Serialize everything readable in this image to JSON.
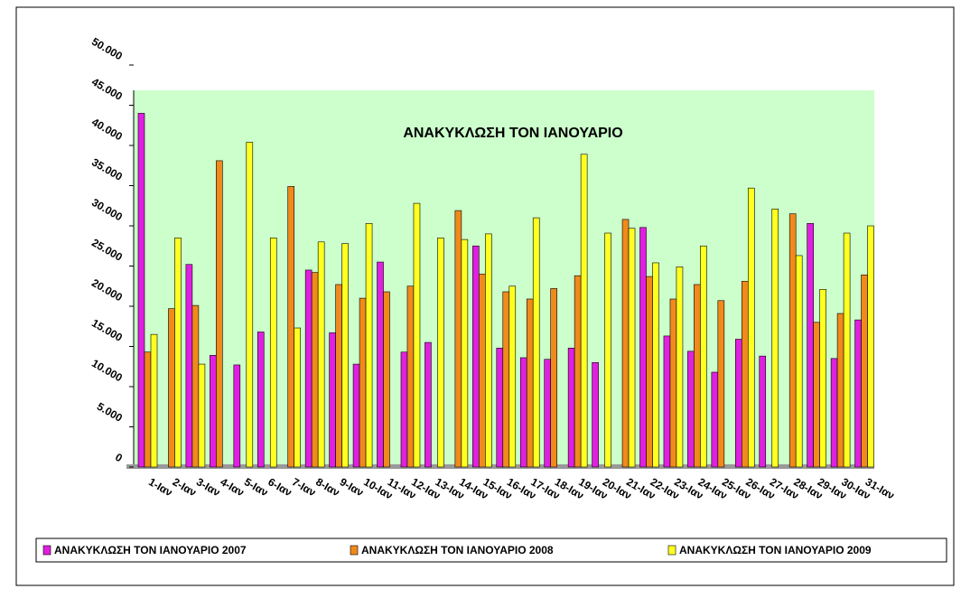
{
  "chart_data": {
    "type": "bar",
    "title": "ΑΝΑΚΥΚΛΩΣΗ ΤΟΝ ΙΑΝΟΥΑΡΙΟ",
    "categories": [
      "1-Ιαν",
      "2-Ιαν",
      "3-Ιαν",
      "4-Ιαν",
      "5-Ιαν",
      "6-Ιαν",
      "7-Ιαν",
      "8-Ιαν",
      "9-Ιαν",
      "10-Ιαν",
      "11-Ιαν",
      "12-Ιαν",
      "13-Ιαν",
      "14-Ιαν",
      "15-Ιαν",
      "16-Ιαν",
      "17-Ιαν",
      "18-Ιαν",
      "19-Ιαν",
      "20-Ιαν",
      "21-Ιαν",
      "22-Ιαν",
      "23-Ιαν",
      "24-Ιαν",
      "25-Ιαν",
      "26-Ιαν",
      "27-Ιαν",
      "28-Ιαν",
      "29-Ιαν",
      "30-Ιαν",
      "31-Ιαν"
    ],
    "series": [
      {
        "name": "ΑΝΑΚΥΚΛΩΣΗ ΤΟΝ ΙΑΝΟΥΑΡΙΟ 2007",
        "color": "#e020e0",
        "values": [
          44000,
          0,
          25200,
          13900,
          12700,
          16800,
          0,
          24500,
          16700,
          12800,
          25500,
          14300,
          15500,
          0,
          27500,
          14800,
          13600,
          13400,
          14800,
          13000,
          0,
          29800,
          16300,
          14400,
          11800,
          15900,
          13800,
          0,
          30300,
          13500,
          18300
        ]
      },
      {
        "name": "ΑΝΑΚΥΚΛΩΣΗ ΤΟΝ ΙΑΝΟΥΑΡΙΟ 2008",
        "color": "#f08a1c",
        "values": [
          14300,
          19700,
          20100,
          38100,
          0,
          0,
          34900,
          24200,
          22700,
          21000,
          21800,
          22500,
          0,
          31900,
          24000,
          21800,
          20900,
          22200,
          23800,
          0,
          30800,
          23700,
          20900,
          22700,
          20700,
          23100,
          0,
          31500,
          18000,
          19100,
          23900
        ]
      },
      {
        "name": "ΑΝΑΚΥΚΛΩΣΗ ΤΟΝ ΙΑΝΟΥΑΡΙΟ 2009",
        "color": "#ffff20",
        "values": [
          16500,
          28500,
          12800,
          0,
          40400,
          28500,
          17300,
          28000,
          27800,
          30300,
          0,
          32800,
          28500,
          28300,
          29000,
          22500,
          31000,
          0,
          38900,
          29100,
          29700,
          25400,
          24900,
          27500,
          0,
          34700,
          32100,
          26300,
          22100,
          29100,
          30000
        ]
      }
    ],
    "ylim": [
      0,
      50000
    ],
    "yticks": [
      0,
      {
        "value": 5000,
        "label": "5.000"
      },
      {
        "value": 10000,
        "label": "10.000"
      },
      {
        "value": 15000,
        "label": "15.000"
      },
      {
        "value": 20000,
        "label": "20.000"
      },
      {
        "value": 25000,
        "label": "25.000"
      },
      {
        "value": 30000,
        "label": "30.000"
      },
      {
        "value": 35000,
        "label": "35.000"
      },
      {
        "value": 40000,
        "label": "40.000"
      },
      {
        "value": 45000,
        "label": "45.000"
      },
      {
        "value": 50000,
        "label": "50.000"
      }
    ],
    "grid": false,
    "legend": "bottom"
  }
}
